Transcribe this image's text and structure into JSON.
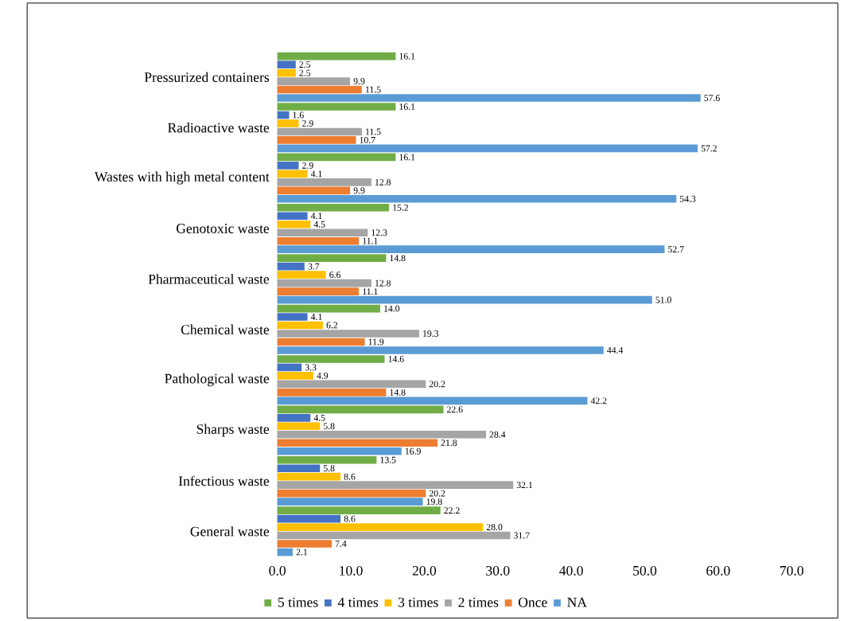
{
  "chart_data": {
    "type": "bar",
    "orientation": "horizontal",
    "categories": [
      "Pressurized containers",
      "Radioactive waste",
      "Wastes with high metal content",
      "Genotoxic waste",
      "Pharmaceutical waste",
      "Chemical waste",
      "Pathological waste",
      "Sharps waste",
      "Infectious waste",
      "General waste"
    ],
    "series": [
      {
        "name": "5 times",
        "color": "#70ad47",
        "values": [
          16.1,
          16.1,
          16.1,
          15.2,
          14.8,
          14.0,
          14.6,
          22.6,
          13.5,
          22.2
        ],
        "value_labels": [
          "16.1",
          "16.1",
          "16.1",
          "15.2",
          "14.8",
          "14.0",
          "14.6",
          "22.6",
          "13.5",
          "22.2"
        ]
      },
      {
        "name": "4 times",
        "color": "#4472c4",
        "values": [
          2.5,
          1.6,
          2.9,
          4.1,
          3.7,
          4.1,
          3.3,
          4.5,
          5.8,
          8.6
        ],
        "value_labels": [
          "2.5",
          "1.6",
          "2.9",
          "4.1",
          "3.7",
          "4.1",
          "3.3",
          "4.5",
          "5.8",
          "8.6"
        ]
      },
      {
        "name": "3 times",
        "color": "#ffc000",
        "values": [
          2.5,
          2.9,
          4.1,
          4.5,
          6.6,
          6.2,
          4.9,
          5.8,
          8.6,
          28.0
        ],
        "value_labels": [
          "2.5",
          "2.9",
          "4.1",
          "4.5",
          "6.6",
          "6.2",
          "4.9",
          "5.8",
          "8.6",
          "28.0"
        ]
      },
      {
        "name": "2 times",
        "color": "#a5a5a5",
        "values": [
          9.9,
          11.5,
          12.8,
          12.3,
          12.8,
          19.3,
          20.2,
          28.4,
          32.1,
          31.7
        ],
        "value_labels": [
          "9.9",
          "11.5",
          "12.8",
          "12.3",
          "12.8",
          "19.3",
          "20.2",
          "28.4",
          "32.1",
          "31.7"
        ]
      },
      {
        "name": "Once",
        "color": "#ed7d31",
        "values": [
          11.5,
          10.7,
          9.9,
          11.1,
          11.1,
          11.9,
          14.8,
          21.8,
          20.2,
          7.4
        ],
        "value_labels": [
          "11.5",
          "10.7",
          "9.9",
          "11.1",
          "11.1",
          "11.9",
          "14.8",
          "21.8",
          "20.2",
          "7.4"
        ]
      },
      {
        "name": "NA",
        "color": "#5b9bd5",
        "values": [
          57.6,
          57.2,
          54.3,
          52.7,
          51.0,
          44.4,
          42.2,
          16.9,
          19.8,
          2.1
        ],
        "value_labels": [
          "57.6",
          "57.2",
          "54.3",
          "52.7",
          "51.0",
          "44.4",
          "42.2",
          "16.9",
          "19.8",
          "2.1"
        ]
      }
    ],
    "xlim": [
      0,
      70
    ],
    "xticks": [
      {
        "value": 0,
        "label": "0.0"
      },
      {
        "value": 10,
        "label": "10.0"
      },
      {
        "value": 20,
        "label": "20.0"
      },
      {
        "value": 30,
        "label": "30.0"
      },
      {
        "value": 40,
        "label": "40.0"
      },
      {
        "value": 50,
        "label": "50.0"
      },
      {
        "value": 60,
        "label": "60.0"
      },
      {
        "value": 70,
        "label": "70.0"
      }
    ],
    "legend": "bottom"
  }
}
